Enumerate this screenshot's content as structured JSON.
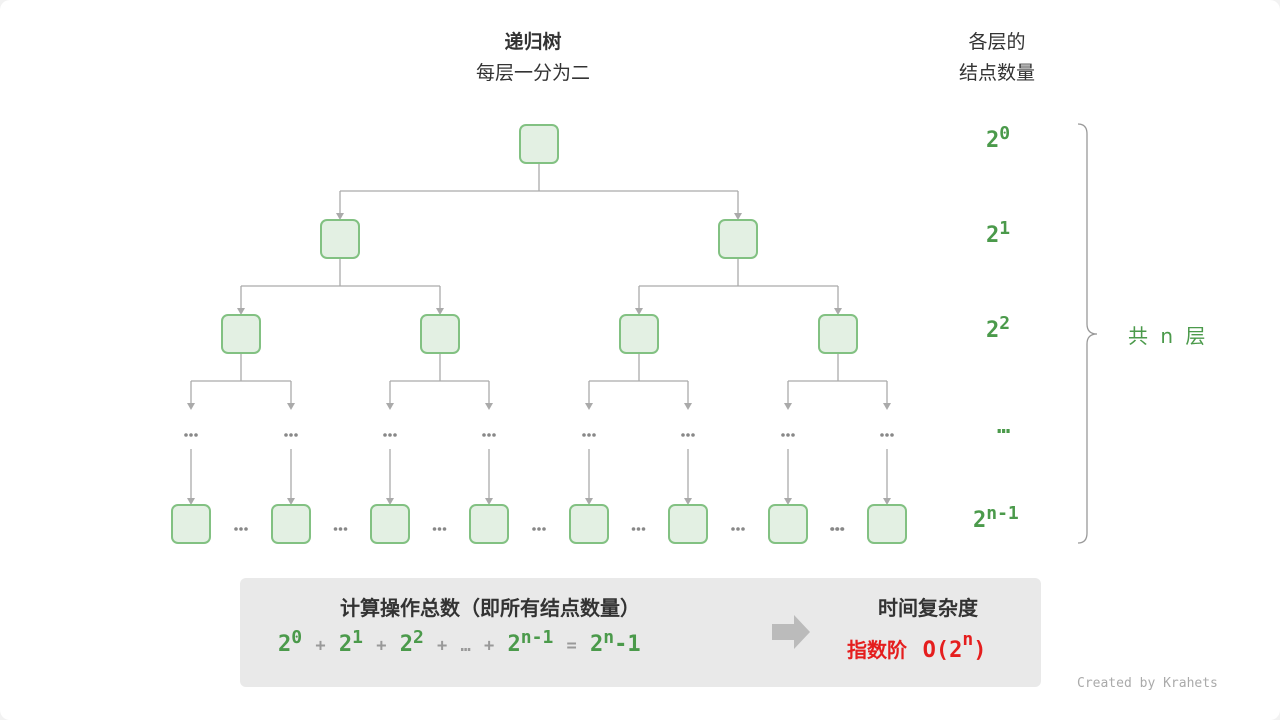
{
  "header": {
    "title": "递归树",
    "subtitle": "每层一分为二"
  },
  "side_header": {
    "line1": "各层的",
    "line2": "结点数量"
  },
  "levels": [
    {
      "base": "2",
      "exp": "0"
    },
    {
      "base": "2",
      "exp": "1"
    },
    {
      "base": "2",
      "exp": "2"
    },
    {
      "ellipsis": "…"
    },
    {
      "base": "2",
      "exp": "n-1"
    }
  ],
  "brace_label": "共 n 层",
  "ellipsis": "•••",
  "summary": {
    "title": "计算操作总数（即所有结点数量）",
    "formula": {
      "terms": [
        {
          "base": "2",
          "exp": "0"
        },
        {
          "base": "2",
          "exp": "1"
        },
        {
          "base": "2",
          "exp": "2"
        }
      ],
      "plus": "+",
      "dots": "…",
      "last": {
        "base": "2",
        "exp": "n-1"
      },
      "equals": "=",
      "result_base": "2",
      "result_exp": "n",
      "result_tail": "-1"
    },
    "complexity_title": "时间复杂度",
    "complexity_name": "指数阶",
    "complexity_pre": "O(2",
    "complexity_exp": "n",
    "complexity_post": ")"
  },
  "credit": "Created by Krahets",
  "colors": {
    "node_fill": "#e3f0e3",
    "node_stroke": "#82c182",
    "edge": "#aaaaaa",
    "accent_green": "#4b9a4b",
    "accent_red": "#e51e1e"
  }
}
